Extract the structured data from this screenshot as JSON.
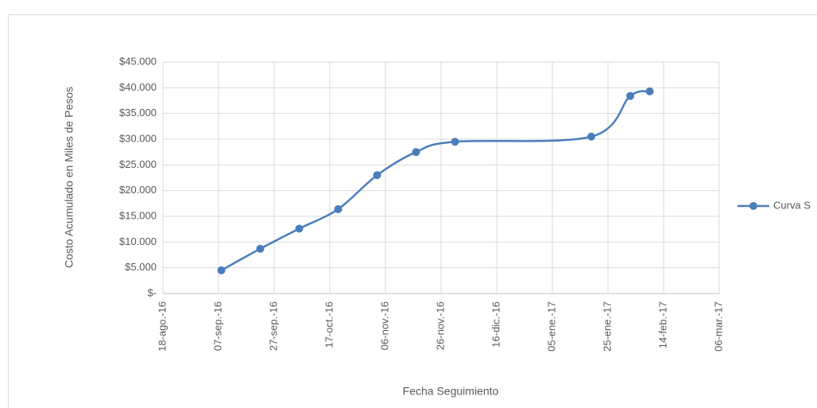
{
  "chart_data": {
    "type": "line",
    "y_label": "Costo Acumulado en Miles de Pesos",
    "x_label": "Fecha Seguimiento",
    "x": [
      "2016-09-08",
      "2016-09-22",
      "2016-10-06",
      "2016-10-20",
      "2016-11-03",
      "2016-11-17",
      "2016-12-01",
      "2017-01-19",
      "2017-02-02",
      "2017-02-09"
    ],
    "series": [
      {
        "name": "Curva S",
        "color": "#4a7ebb",
        "values": [
          4500,
          8700,
          12600,
          16400,
          23000,
          27500,
          29500,
          30500,
          38400,
          39300
        ]
      }
    ],
    "xlim": [
      "2016-08-18",
      "2017-03-06"
    ],
    "xticks": [
      {
        "value": "2016-08-18",
        "label": "18-ago.-16"
      },
      {
        "value": "2016-09-07",
        "label": "07-sep.-16"
      },
      {
        "value": "2016-09-27",
        "label": "27-sep.-16"
      },
      {
        "value": "2016-10-17",
        "label": "17-oct.-16"
      },
      {
        "value": "2016-11-06",
        "label": "06-nov.-16"
      },
      {
        "value": "2016-11-26",
        "label": "26-nov.-16"
      },
      {
        "value": "2016-12-16",
        "label": "16-dic.-16"
      },
      {
        "value": "2017-01-05",
        "label": "05-ene.-17"
      },
      {
        "value": "2017-01-25",
        "label": "25-ene.-17"
      },
      {
        "value": "2017-02-14",
        "label": "14-feb.-17"
      },
      {
        "value": "2017-03-06",
        "label": "06-mar.-17"
      }
    ],
    "ylim": [
      0,
      45000
    ],
    "yticks": [
      {
        "value": 0,
        "label": "$-"
      },
      {
        "value": 5000,
        "label": "$5.000"
      },
      {
        "value": 10000,
        "label": "$10.000"
      },
      {
        "value": 15000,
        "label": "$15.000"
      },
      {
        "value": 20000,
        "label": "$20.000"
      },
      {
        "value": 25000,
        "label": "$25.000"
      },
      {
        "value": 30000,
        "label": "$30.000"
      },
      {
        "value": 35000,
        "label": "$35.000"
      },
      {
        "value": 40000,
        "label": "$40.000"
      },
      {
        "value": 45000,
        "label": "$45.000"
      }
    ],
    "grid": true,
    "smooth": true,
    "legend": "right"
  }
}
